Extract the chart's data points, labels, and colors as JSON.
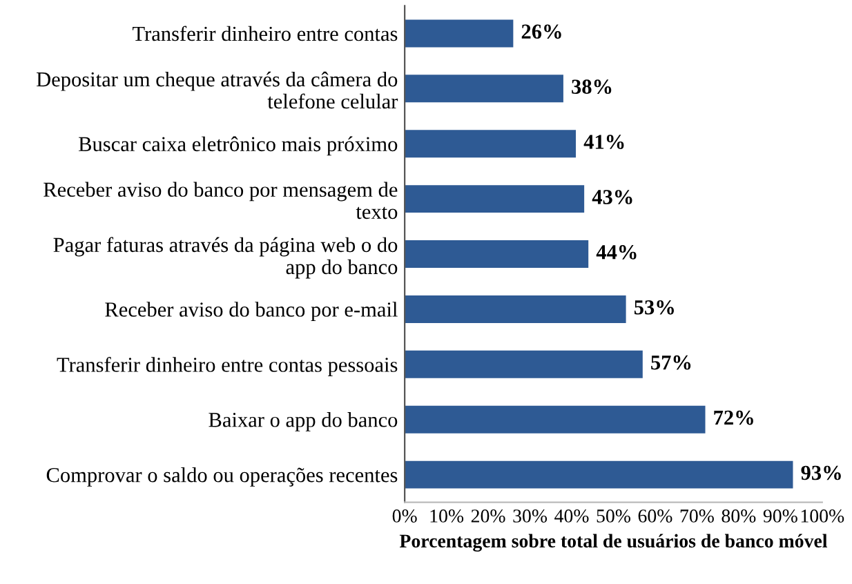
{
  "chart_data": {
    "type": "bar",
    "orientation": "horizontal",
    "xlabel": "Porcentagem sobre total de usuários de banco móvel",
    "categories": [
      "Transferir dinheiro entre contas",
      "Depositar um cheque através da câmera do\ntelefone celular",
      "Buscar caixa eletrônico mais próximo",
      "Receber aviso do banco por mensagem de\ntexto",
      "Pagar faturas através da página web o do\napp do banco",
      "Receber aviso do banco por e-mail",
      "Transferir dinheiro entre contas pessoais",
      "Baixar o app do banco",
      "Comprovar o saldo ou operações recentes"
    ],
    "values": [
      26,
      38,
      41,
      43,
      44,
      53,
      57,
      72,
      93
    ],
    "value_labels": [
      "26%",
      "38%",
      "41%",
      "43%",
      "44%",
      "53%",
      "57%",
      "72%",
      "93%"
    ],
    "color": "#2e5a94",
    "xlim": [
      0,
      100
    ],
    "xticks": [
      {
        "value": 0,
        "label": "0%"
      },
      {
        "value": 10,
        "label": "10%"
      },
      {
        "value": 20,
        "label": "20%"
      },
      {
        "value": 30,
        "label": "30%"
      },
      {
        "value": 40,
        "label": "40%"
      },
      {
        "value": 50,
        "label": "50%"
      },
      {
        "value": 60,
        "label": "60%"
      },
      {
        "value": 70,
        "label": "70%"
      },
      {
        "value": 80,
        "label": "80%"
      },
      {
        "value": 90,
        "label": "90%"
      },
      {
        "value": 100,
        "label": "100%"
      }
    ],
    "grid": false,
    "legend": false
  }
}
